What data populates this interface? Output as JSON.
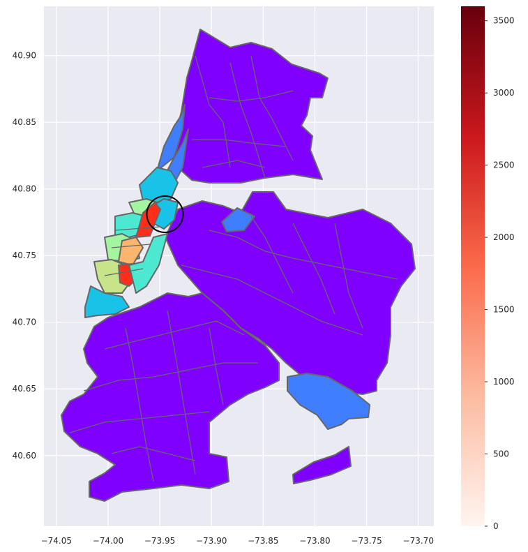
{
  "chart_data": {
    "type": "choropleth",
    "x_ticks": [
      "−74.05",
      "−74.00",
      "−73.95",
      "−73.90",
      "−73.85",
      "−73.80",
      "−73.75",
      "−73.70"
    ],
    "y_ticks": [
      "40.90",
      "40.85",
      "40.80",
      "40.75",
      "40.70",
      "40.65",
      "40.60"
    ],
    "xlim": [
      -74.062,
      -73.685
    ],
    "ylim": [
      40.547,
      40.937
    ],
    "grid": true,
    "colormap_map": "rainbow",
    "colorbar": {
      "colormap": "Reds",
      "range": [
        0,
        3600
      ],
      "ticks": [
        "0",
        "500",
        "1000",
        "1500",
        "2000",
        "2500",
        "3000",
        "3500"
      ],
      "colors": [
        "#fff5f0",
        "#fcbba1",
        "#fb6a4a",
        "#cb181d",
        "#67000d"
      ]
    },
    "annotation": {
      "type": "circle",
      "center": [
        -73.945,
        40.781
      ],
      "stroke": "#000000"
    },
    "colors": {
      "background": "#eaeaf2",
      "zone_outline": "#666666",
      "water": "#e9e9f1",
      "low": "#8000ff",
      "blue": "#3f7fff",
      "cyan": "#19c3e7",
      "teal": "#4de8d1",
      "green": "#a3f5a0",
      "yellowgreen": "#c7e48a",
      "orange": "#fbb56d",
      "red": "#ff2e1a"
    }
  }
}
